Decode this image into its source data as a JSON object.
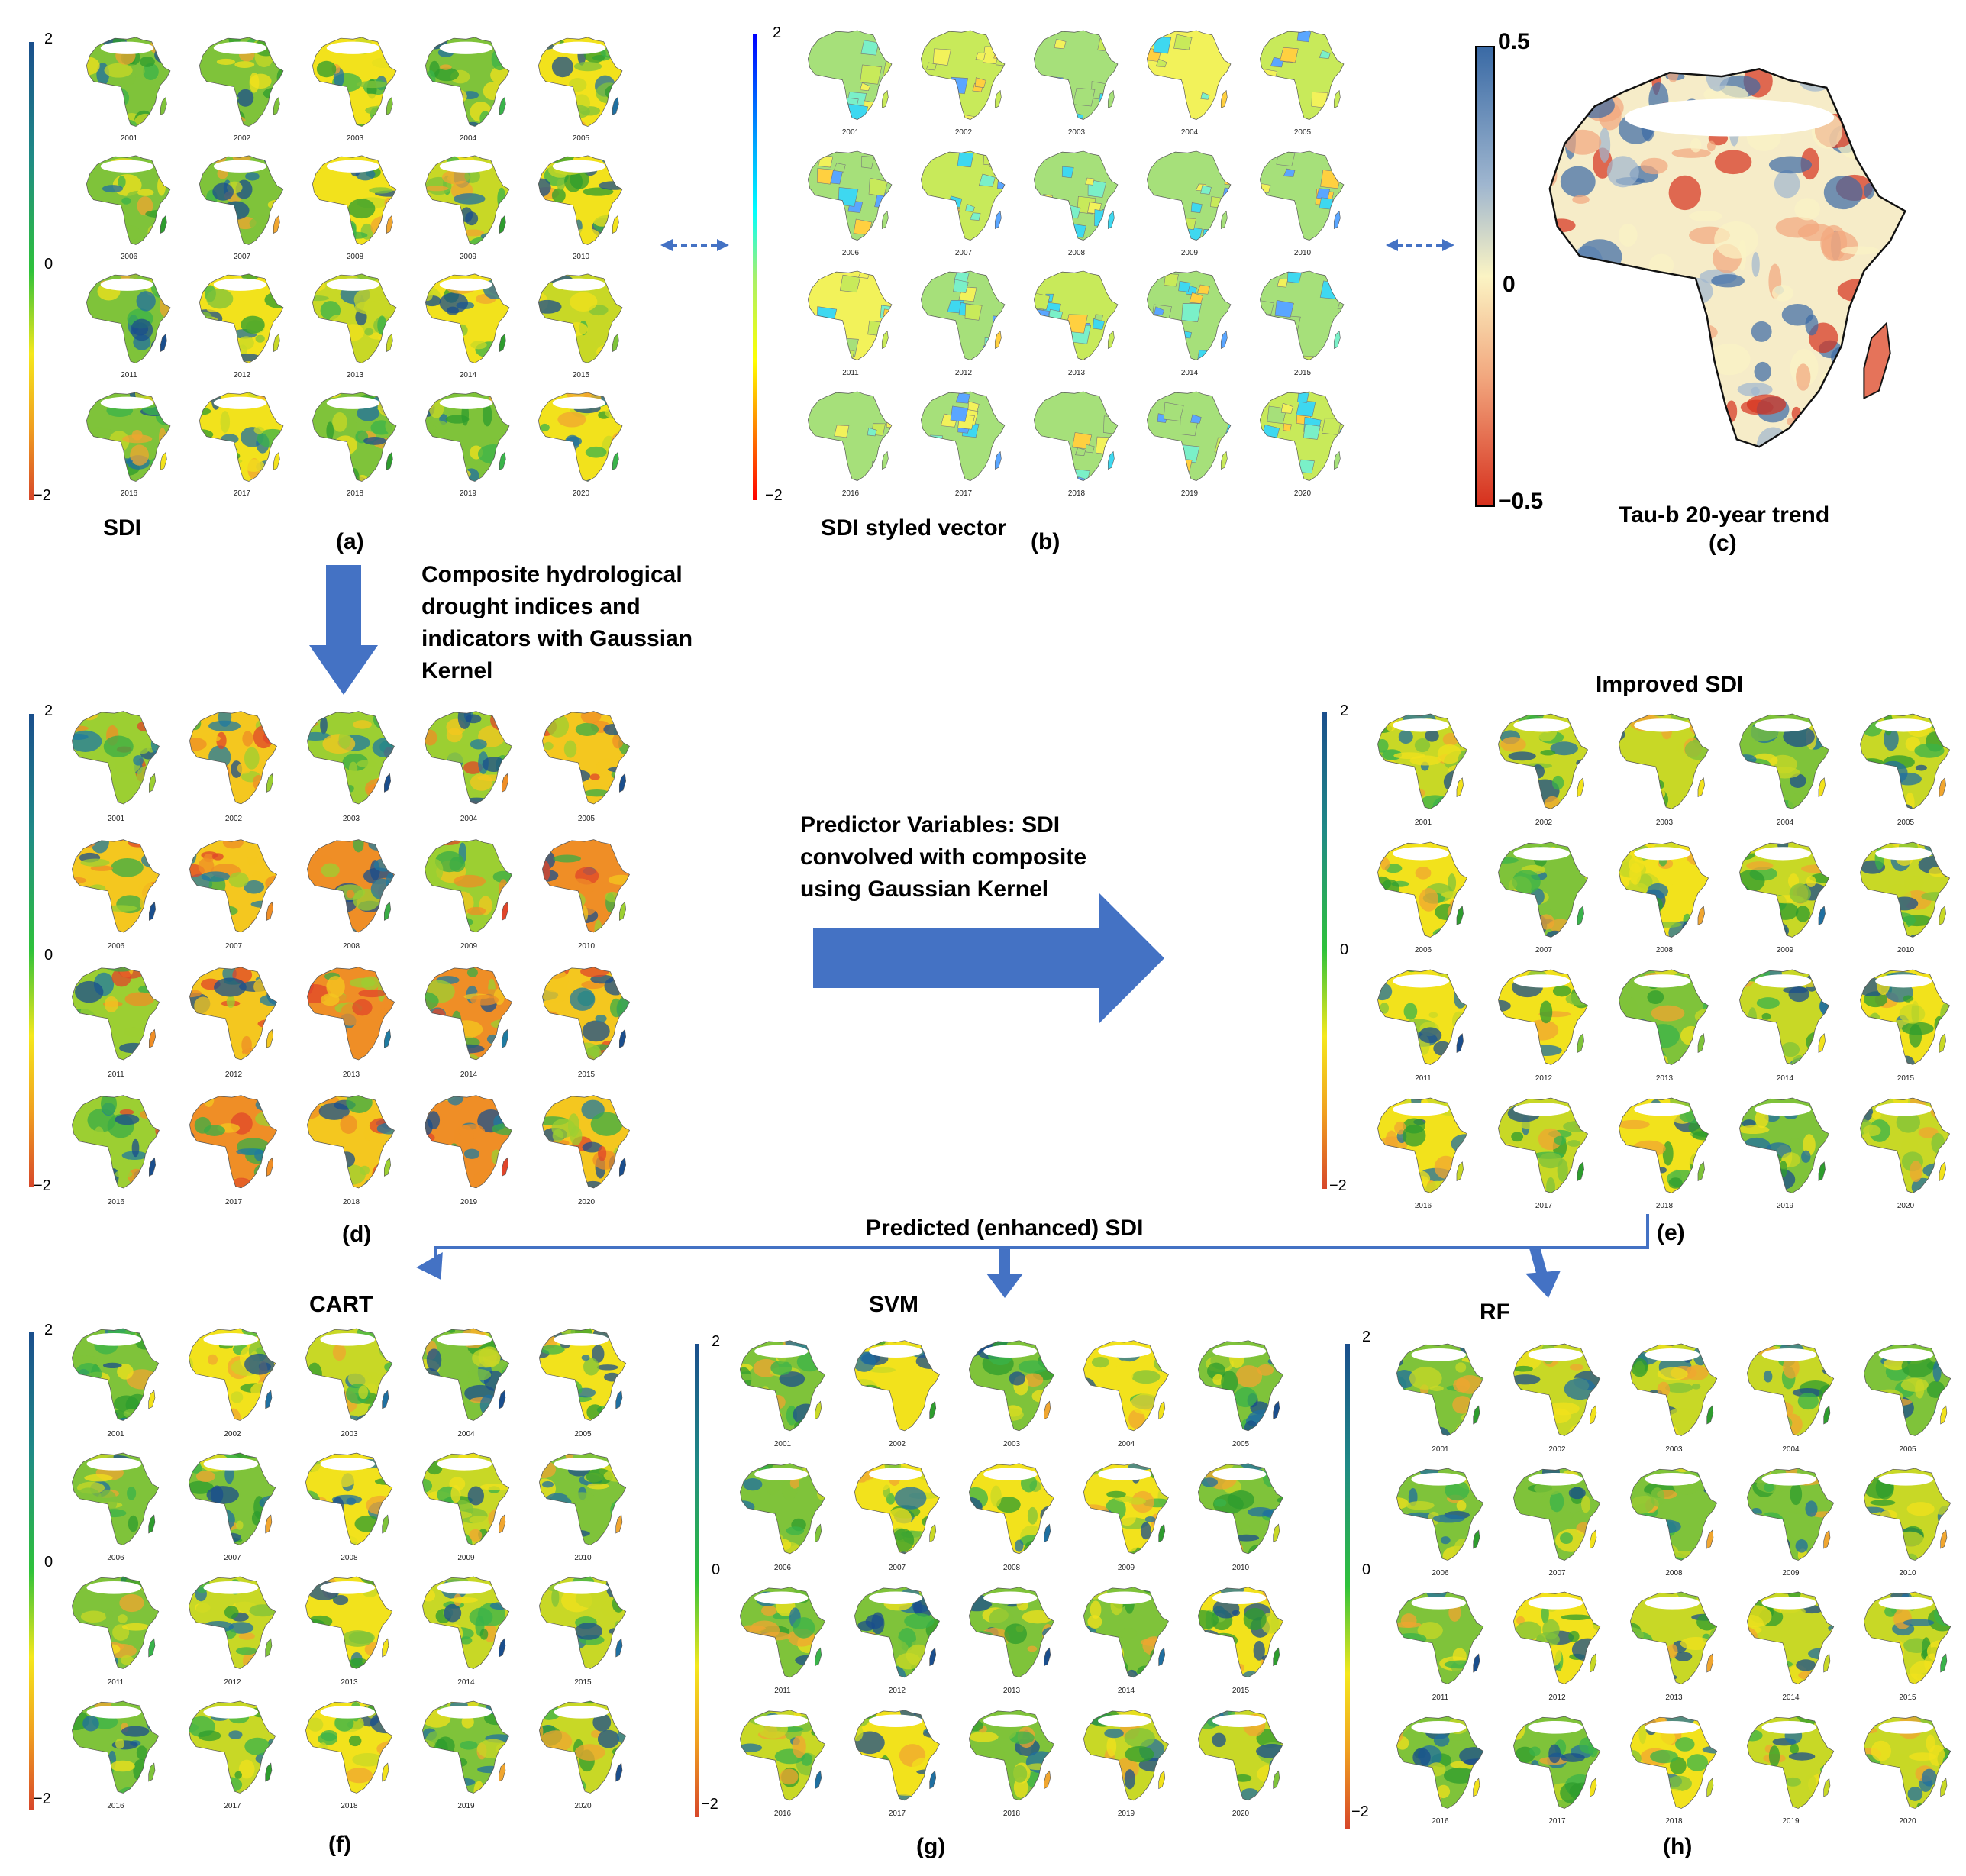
{
  "years": [
    "2001",
    "2002",
    "2003",
    "2004",
    "2005",
    "2006",
    "2007",
    "2008",
    "2009",
    "2010",
    "2011",
    "2012",
    "2013",
    "2014",
    "2015",
    "2016",
    "2017",
    "2018",
    "2019",
    "2020"
  ],
  "colorbar_ticks": {
    "max": "2",
    "mid": "0",
    "min": "−2"
  },
  "panels": {
    "a": {
      "letter": "(a)",
      "title": "SDI"
    },
    "b": {
      "letter": "(b)",
      "title": "SDI styled vector"
    },
    "c": {
      "letter": "(c)",
      "title": "Tau-b 20-year trend",
      "tick_max": "0.5",
      "tick_mid": "0",
      "tick_min": "−0.5"
    },
    "d": {
      "letter": "(d)"
    },
    "e": {
      "letter": "(e)",
      "title": "Improved SDI"
    },
    "f": {
      "letter": "(f)",
      "title": "CART"
    },
    "g": {
      "letter": "(g)",
      "title": "SVM"
    },
    "h": {
      "letter": "(h)",
      "title": "RF"
    }
  },
  "annotations": {
    "composite": "Composite hydrological drought indices and indicators with Gaussian Kernel",
    "predictor": "Predictor Variables: SDI convolved with composite using Gaussian Kernel",
    "predicted": "Predicted (enhanced) SDI"
  },
  "colors": {
    "arrow": "#4472C4",
    "dry": "#d7472a",
    "neutral": "#f5e81c",
    "wet": "#1a4e8c"
  }
}
